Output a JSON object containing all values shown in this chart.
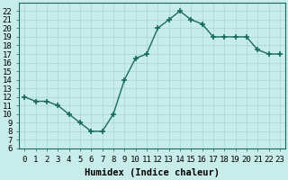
{
  "x": [
    0,
    1,
    2,
    3,
    4,
    5,
    6,
    7,
    8,
    9,
    10,
    11,
    12,
    13,
    14,
    15,
    16,
    17,
    18,
    19,
    20,
    21,
    22,
    23
  ],
  "y": [
    12,
    11.5,
    11.5,
    11,
    10,
    9,
    8,
    8,
    10,
    14,
    16.5,
    17,
    20,
    21,
    22,
    21,
    20.5,
    19,
    19,
    19,
    19,
    17.5,
    17,
    17
  ],
  "line_color": "#1a6b5a",
  "marker": "+",
  "marker_size": 5,
  "marker_lw": 1.2,
  "bg_color": "#c8ecea",
  "grid_color": "#b0dcd8",
  "xlabel": "Humidex (Indice chaleur)",
  "xlim": [
    -0.5,
    23.5
  ],
  "ylim": [
    6,
    23
  ],
  "xticks": [
    0,
    1,
    2,
    3,
    4,
    5,
    6,
    7,
    8,
    9,
    10,
    11,
    12,
    13,
    14,
    15,
    16,
    17,
    18,
    19,
    20,
    21,
    22,
    23
  ],
  "yticks": [
    6,
    7,
    8,
    9,
    10,
    11,
    12,
    13,
    14,
    15,
    16,
    17,
    18,
    19,
    20,
    21,
    22
  ],
  "tick_fontsize": 6.5,
  "label_fontsize": 7.5
}
